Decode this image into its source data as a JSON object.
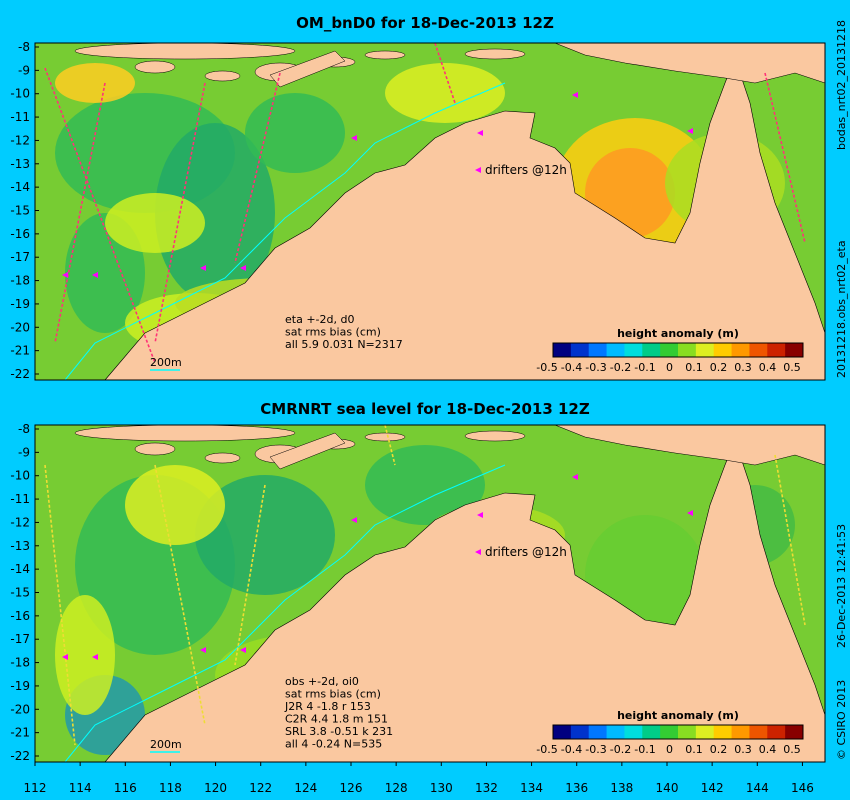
{
  "colors": {
    "background": "#00ccff",
    "land": "#fac8a0",
    "sea_mid": "#66cc33",
    "colorbar": [
      "#000080",
      "#0033cc",
      "#0077ff",
      "#00bbff",
      "#00dddd",
      "#00cc88",
      "#33cc33",
      "#88dd22",
      "#ddee22",
      "#ffcc00",
      "#ff9900",
      "#ee5500",
      "#cc2200",
      "#880000"
    ]
  },
  "panels": [
    {
      "title": "OM_bnD0 for 18-Dec-2013 12Z",
      "info_lines": [
        "eta +-2d, d0",
        "sat rms bias (cm)",
        "all 5.9 0.031 N=2317"
      ],
      "scale_label": "200m",
      "drifters_label": "drifters @12h",
      "colorbar_title": "height anomaly (m)",
      "right_labels": [
        "bodas_nrt02_20131218",
        "20131218.obs_nrt02_eta"
      ]
    },
    {
      "title": "CMRNRT sea level  for 18-Dec-2013 12Z",
      "info_lines": [
        "obs +-2d, oi0",
        "sat rms bias (cm)",
        "J2R   4 -1.8 r 153",
        "C2R   4.4 1.8 m 151",
        "SRL   3.8 -0.51 k 231",
        "all   4 -0.24 N=535"
      ],
      "scale_label": "200m",
      "drifters_label": "drifters @12h",
      "colorbar_title": "height anomaly (m)",
      "right_labels": [
        "26-Dec-2013 12:41:53",
        "© CSIRO 2013"
      ]
    }
  ],
  "colorbar_ticks": [
    "-0.5",
    "-0.4",
    "-0.3",
    "-0.2",
    "-0.1",
    "0",
    "0.1",
    "0.2",
    "0.3",
    "0.4",
    "0.5"
  ],
  "y_ticks": [
    "-8",
    "-9",
    "-10",
    "-11",
    "-12",
    "-13",
    "-14",
    "-15",
    "-16",
    "-17",
    "-18",
    "-19",
    "-20",
    "-21",
    "-22"
  ],
  "x_ticks": [
    "112",
    "114",
    "116",
    "118",
    "120",
    "122",
    "124",
    "126",
    "128",
    "130",
    "132",
    "134",
    "136",
    "138",
    "140",
    "142",
    "144",
    "146"
  ]
}
